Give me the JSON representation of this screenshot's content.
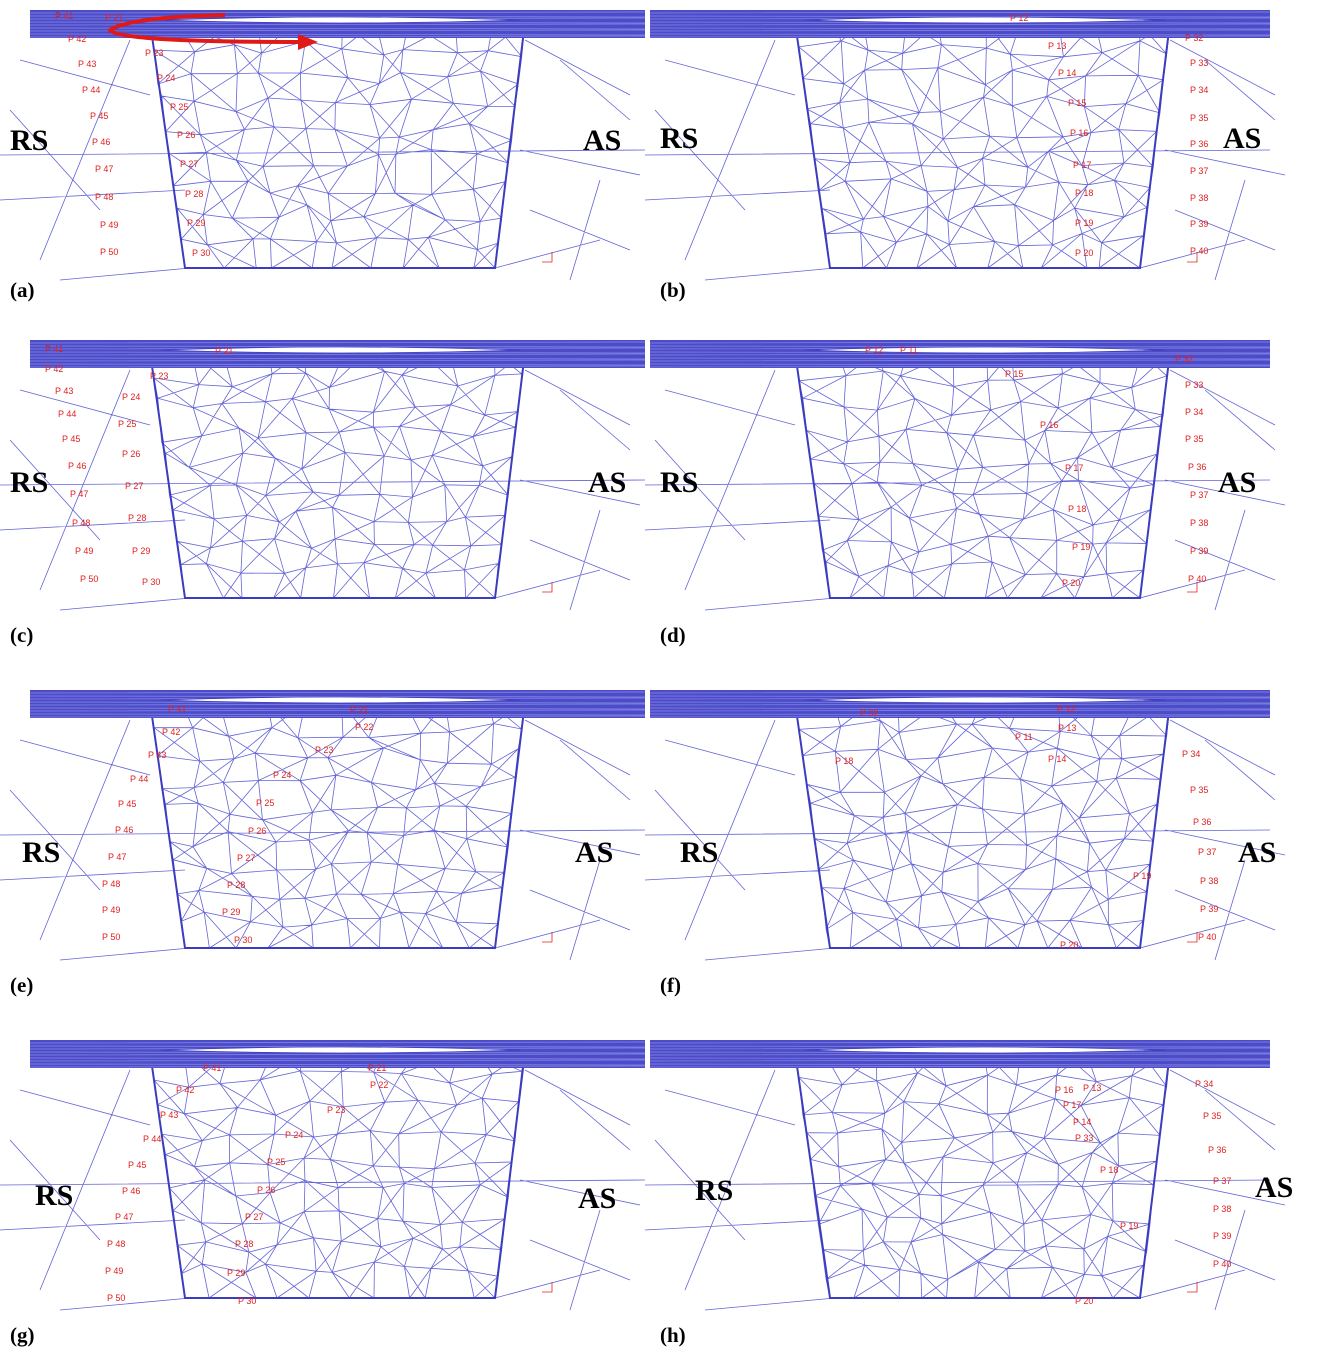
{
  "panels": [
    {
      "label": "(a)",
      "left": "RS",
      "right": "AS",
      "particles": [
        "P 41",
        "P 21",
        "P 42",
        "P 23",
        "P 43",
        "P 24",
        "P 44",
        "P 25",
        "P 45",
        "P 26",
        "P 46",
        "P 27",
        "P 47",
        "P 28",
        "P 48",
        "P 29",
        "P 49",
        "P 30",
        "P 50"
      ]
    },
    {
      "label": "(b)",
      "left": "RS",
      "right": "AS",
      "particles": [
        "P 12",
        "P 13",
        "P 14",
        "P 15",
        "P 16",
        "P 17",
        "P 18",
        "P 19",
        "P 20",
        "P 32",
        "P 33",
        "P 34",
        "P 35",
        "P 36",
        "P 37",
        "P 38",
        "P 39",
        "P 40"
      ]
    },
    {
      "label": "(c)",
      "left": "RS",
      "right": "AS",
      "particles": [
        "P 41",
        "P 42",
        "P 43",
        "P 44",
        "P 45",
        "P 46",
        "P 47",
        "P 48",
        "P 49",
        "P 50",
        "P 21",
        "P 23",
        "P 24",
        "P 25",
        "P 26",
        "P 27",
        "P 28",
        "P 29",
        "P 30"
      ]
    },
    {
      "label": "(d)",
      "left": "RS",
      "right": "AS",
      "particles": [
        "P 12",
        "P 11",
        "P 15",
        "P 16",
        "P 17",
        "P 18",
        "P 19",
        "P 20",
        "P 32",
        "P 33",
        "P 34",
        "P 35",
        "P 36",
        "P 37",
        "P 38",
        "P 39",
        "P 40"
      ]
    },
    {
      "label": "(e)",
      "left": "RS",
      "right": "AS",
      "particles": [
        "P 41",
        "P 42",
        "P 43",
        "P 44",
        "P 45",
        "P 46",
        "P 47",
        "P 48",
        "P 49",
        "P 50",
        "P 21",
        "P 22",
        "P 23",
        "P 24",
        "P 25",
        "P 26",
        "P 27",
        "P 28",
        "P 29",
        "P 30"
      ]
    },
    {
      "label": "(f)",
      "left": "RS",
      "right": "AS",
      "particles": [
        "P 32",
        "P 12",
        "P 11",
        "P 13",
        "P 18",
        "P 14",
        "P 19",
        "P 20",
        "P 34",
        "P 35",
        "P 36",
        "P 37",
        "P 38",
        "P 39",
        "P 40"
      ]
    },
    {
      "label": "(g)",
      "left": "RS",
      "right": "AS",
      "particles": [
        "P 41",
        "P 42",
        "P 43",
        "P 44",
        "P 45",
        "P 46",
        "P 47",
        "P 48",
        "P 49",
        "P 50",
        "P 21",
        "P 22",
        "P 23",
        "P 24",
        "P 25",
        "P 26",
        "P 27",
        "P 28",
        "P 29",
        "P 30"
      ]
    },
    {
      "label": "(h)",
      "left": "RS",
      "right": "AS",
      "particles": [
        "P 13",
        "P 16",
        "P 17",
        "P 14",
        "P 33",
        "P 18",
        "P 19",
        "P 20",
        "P 34",
        "P 35",
        "P 36",
        "P 37",
        "P 38",
        "P 39",
        "P 40"
      ]
    }
  ]
}
